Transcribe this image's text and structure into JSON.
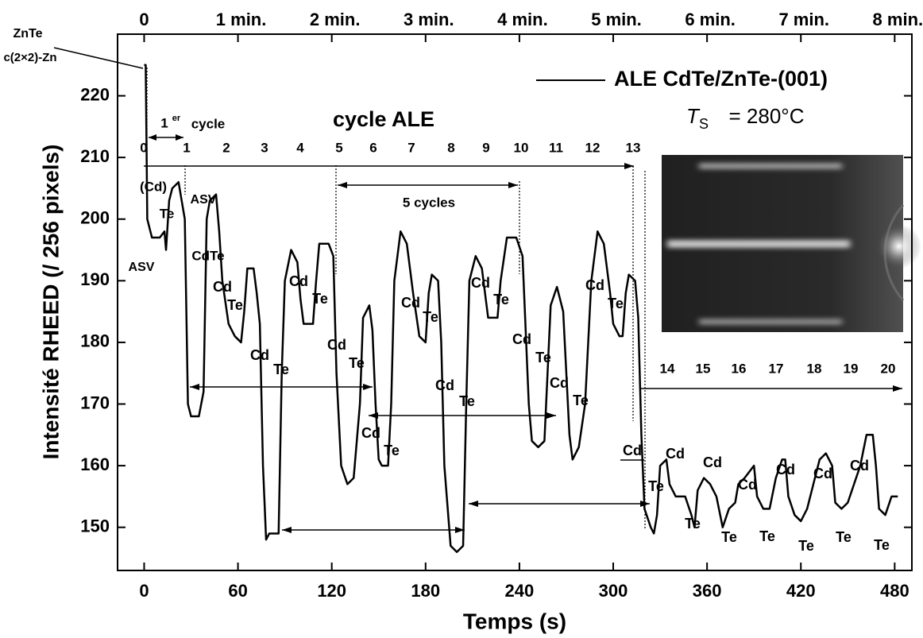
{
  "chart_data": {
    "type": "line",
    "xlabel": "Temps (s)",
    "ylabel": "Intensité RHEED (/ 256 pixels)",
    "x": [
      0,
      1,
      2,
      5,
      10,
      13,
      14,
      16,
      18,
      22,
      24,
      26,
      28,
      30,
      35,
      38,
      40,
      42,
      46,
      48,
      50,
      54,
      58,
      62,
      64,
      66,
      70,
      72,
      74,
      76,
      78,
      80,
      86,
      88,
      90,
      94,
      98,
      100,
      102,
      108,
      110,
      112,
      118,
      121,
      123,
      126,
      130,
      134,
      138,
      140,
      144,
      146,
      148,
      150,
      152,
      156,
      158,
      160,
      164,
      168,
      172,
      176,
      180,
      182,
      184,
      188,
      190,
      192,
      196,
      200,
      204,
      206,
      208,
      212,
      216,
      218,
      220,
      226,
      228,
      232,
      238,
      242,
      244,
      246,
      248,
      252,
      256,
      258,
      260,
      264,
      268,
      270,
      272,
      274,
      278,
      282,
      286,
      290,
      294,
      298,
      300,
      304,
      306,
      308,
      310,
      314,
      316,
      318,
      320,
      324,
      326,
      328,
      330,
      334,
      336,
      340,
      346,
      350,
      352,
      354,
      358,
      362,
      366,
      370,
      374,
      378,
      380,
      384,
      390,
      392,
      396,
      400,
      404,
      408,
      410,
      412,
      416,
      420,
      424,
      428,
      432,
      436,
      440,
      442,
      446,
      450,
      454,
      458,
      462,
      466,
      468,
      470,
      474,
      478,
      482
    ],
    "series": [
      {
        "name": "ALE CdTe/ZnTe-(001)",
        "color": "#000000",
        "values": [
          225,
          225,
          200,
          197,
          197,
          198,
          195,
          203,
          205,
          206,
          203,
          200,
          170,
          168,
          168,
          172,
          200,
          203,
          204,
          198,
          190,
          183,
          181,
          180,
          185,
          192,
          192,
          188,
          183,
          160,
          148,
          149,
          149,
          175,
          190,
          195,
          193,
          187,
          183,
          183,
          190,
          196,
          196,
          194,
          175,
          160,
          157,
          158,
          170,
          184,
          186,
          182,
          170,
          161,
          160,
          160,
          170,
          190,
          198,
          196,
          188,
          181,
          180,
          188,
          191,
          190,
          180,
          160,
          147,
          146,
          147,
          170,
          190,
          194,
          192,
          188,
          184,
          184,
          190,
          197,
          197,
          194,
          182,
          170,
          164,
          163,
          164,
          175,
          186,
          189,
          185,
          175,
          165,
          161,
          163,
          170,
          190,
          198,
          196,
          188,
          183,
          181,
          181,
          188,
          191,
          190,
          184,
          165,
          153,
          150,
          149,
          152,
          160,
          161,
          157,
          155,
          155,
          152,
          150,
          156,
          158,
          157,
          155,
          150,
          153,
          154,
          157,
          158,
          160,
          155,
          153,
          153,
          158,
          161,
          161,
          155,
          152,
          151,
          153,
          157,
          161,
          162,
          160,
          154,
          153,
          154,
          157,
          160,
          165,
          165,
          160,
          153,
          152,
          155,
          155
        ]
      }
    ],
    "xlim": [
      -17,
      491
    ],
    "ylim": [
      143,
      230
    ],
    "xticks": [
      0,
      60,
      120,
      180,
      240,
      300,
      360,
      420,
      480
    ],
    "yticks": [
      150,
      160,
      170,
      180,
      190,
      200,
      210,
      220
    ],
    "x2ticks": [
      {
        "value": 0,
        "label": "0"
      },
      {
        "value": 60,
        "label": "1 min."
      },
      {
        "value": 120,
        "label": "2 min."
      },
      {
        "value": 180,
        "label": "3 min."
      },
      {
        "value": 240,
        "label": "4 min."
      },
      {
        "value": 300,
        "label": "5 min."
      },
      {
        "value": 360,
        "label": "6 min."
      },
      {
        "value": 420,
        "label": "7 min."
      },
      {
        "value": 480,
        "label": "8 min."
      }
    ],
    "cycles": [
      "0",
      "1",
      "2",
      "3",
      "4",
      "5",
      "6",
      "7",
      "8",
      "9",
      "10",
      "11",
      "12",
      "13",
      "14",
      "15",
      "16",
      "17",
      "18",
      "19",
      "20"
    ],
    "annotations": [
      "ZnTe",
      "c(2×2)-Zn",
      "1",
      "er",
      "cycle",
      "cycle ALE",
      "5 cycles",
      "T",
      "S",
      "= 280°C",
      "(Cd)",
      "Te",
      "ASV",
      "ASV",
      "CdTe",
      "Cd",
      "Te",
      "Cd",
      "Te",
      "Cd",
      "Te",
      "Cd",
      "Te",
      "Cd",
      "Te",
      "Cd",
      "Te",
      "Cd",
      "Te",
      "Cd",
      "Te",
      "Cd",
      "Te",
      "Cd",
      "Te",
      "Cd",
      "Te",
      "Cd",
      "Te",
      "Cd",
      "Te",
      "Cd",
      "Te",
      "Cd",
      "Te",
      "Cd",
      "Te",
      "Cd",
      "Te",
      "Cd",
      "Te"
    ]
  }
}
